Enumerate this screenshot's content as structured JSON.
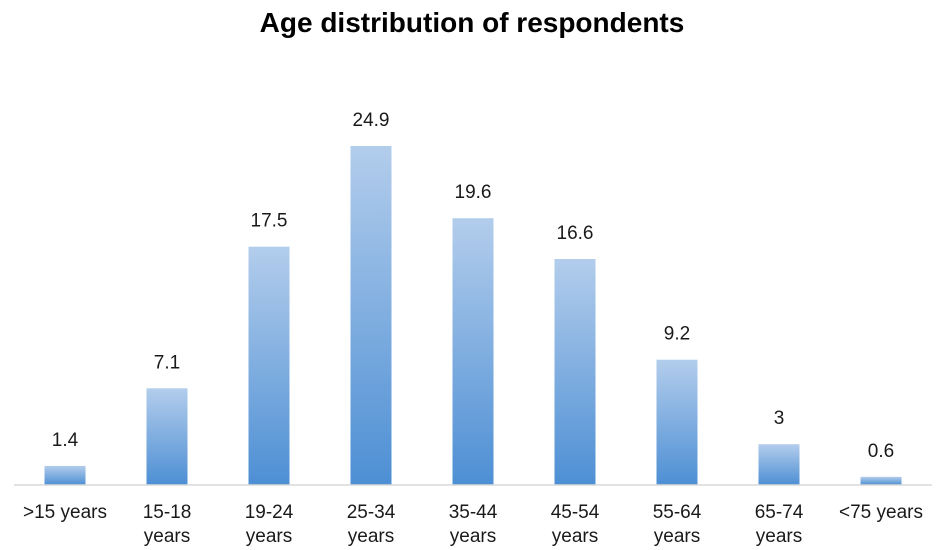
{
  "chart_data": {
    "type": "bar",
    "title": "Age distribution of respondents",
    "xlabel": "",
    "ylabel": "",
    "categories": [
      [
        ">15 years"
      ],
      [
        "15-18",
        "years"
      ],
      [
        "19-24",
        "years"
      ],
      [
        "25-34",
        "years"
      ],
      [
        "35-44",
        "years"
      ],
      [
        "45-54",
        "years"
      ],
      [
        "55-64",
        "years"
      ],
      [
        "65-74",
        "years"
      ],
      [
        "<75 years"
      ]
    ],
    "values": [
      1.4,
      7.1,
      17.5,
      24.9,
      19.6,
      16.6,
      9.2,
      3,
      0.6
    ],
    "value_labels": [
      "1.4",
      "7.1",
      "17.5",
      "24.9",
      "19.6",
      "16.6",
      "9.2",
      "3",
      "0.6"
    ],
    "ylim": [
      0,
      24.9
    ],
    "grid": false,
    "legend": "none",
    "colors": {
      "bar_top": "#b3cdec",
      "bar_bottom": "#4d8fd4",
      "axis": "#d9d9d9"
    }
  }
}
